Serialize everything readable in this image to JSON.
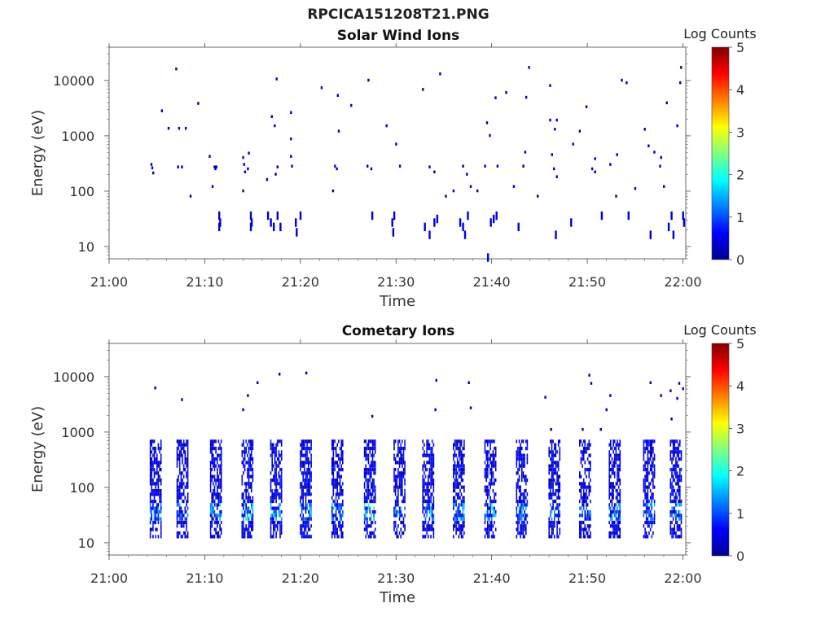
{
  "figure": {
    "title": "RPCICA151208T21.PNG"
  },
  "panels": [
    {
      "id": "solar",
      "title": "Solar Wind Ions",
      "xlabel": "Time",
      "ylabel": "Energy (eV)",
      "colorbar_label": "Log Counts"
    },
    {
      "id": "cometary",
      "title": "Cometary Ions",
      "xlabel": "Time",
      "ylabel": "Energy (eV)",
      "colorbar_label": "Log Counts"
    }
  ],
  "chart_data": [
    {
      "type": "heatmap",
      "title": "Solar Wind Ions",
      "xlabel": "Time",
      "ylabel": "Energy (eV)",
      "x_tick_labels": [
        "21:00",
        "21:10",
        "21:20",
        "21:30",
        "21:40",
        "21:50",
        "22:00"
      ],
      "x_ticks_min": [
        0,
        10,
        20,
        30,
        40,
        50,
        60
      ],
      "xlim_min": [
        0,
        60.3
      ],
      "y_scale": "log",
      "y_ticks": [
        10,
        100,
        1000,
        10000
      ],
      "y_tick_labels": [
        "10",
        "100",
        "1000",
        "10000"
      ],
      "ylim": [
        6,
        40000
      ],
      "colorbar": {
        "label": "Log Counts",
        "range": [
          0,
          5
        ],
        "ticks": [
          "0",
          "1",
          "2",
          "3",
          "4",
          "5"
        ],
        "colormap": "jet"
      },
      "grid": false,
      "points": [
        [
          7.0,
          16000,
          0.3
        ],
        [
          5.5,
          2800,
          0.3
        ],
        [
          6.2,
          1350,
          0.3
        ],
        [
          7.3,
          1350,
          0.3
        ],
        [
          8.0,
          1350,
          0.3
        ],
        [
          9.3,
          3800,
          0.3
        ],
        [
          4.4,
          300,
          0.3
        ],
        [
          4.5,
          260,
          0.3
        ],
        [
          4.6,
          210,
          0.3
        ],
        [
          7.2,
          270,
          0.3
        ],
        [
          7.6,
          270,
          0.3
        ],
        [
          8.5,
          80,
          0.3
        ],
        [
          10.5,
          420,
          0.3
        ],
        [
          11.0,
          270,
          0.3
        ],
        [
          11.1,
          250,
          0.3
        ],
        [
          11.2,
          270,
          0.3
        ],
        [
          10.8,
          120,
          0.3
        ],
        [
          11.5,
          40,
          0.4
        ],
        [
          11.6,
          30,
          0.4
        ],
        [
          11.5,
          25,
          0.4
        ],
        [
          14.0,
          400,
          0.3
        ],
        [
          14.1,
          300,
          0.3
        ],
        [
          14.2,
          220,
          0.3
        ],
        [
          14.5,
          250,
          0.3
        ],
        [
          14.6,
          480,
          0.3
        ],
        [
          14.0,
          100,
          0.3
        ],
        [
          14.8,
          40,
          0.4
        ],
        [
          14.9,
          30,
          0.4
        ],
        [
          14.8,
          25,
          0.4
        ],
        [
          17.0,
          2200,
          0.3
        ],
        [
          17.3,
          1500,
          0.3
        ],
        [
          17.5,
          10500,
          0.3
        ],
        [
          17.6,
          270,
          0.3
        ],
        [
          17.4,
          200,
          0.3
        ],
        [
          16.5,
          160,
          0.3
        ],
        [
          16.9,
          30,
          0.4
        ],
        [
          17.2,
          25,
          0.4
        ],
        [
          17.6,
          40,
          0.4
        ],
        [
          17.9,
          25,
          0.4
        ],
        [
          16.6,
          40,
          0.4
        ],
        [
          19.0,
          2600,
          0.3
        ],
        [
          19.0,
          870,
          0.3
        ],
        [
          19.0,
          420,
          0.3
        ],
        [
          19.1,
          280,
          0.3
        ],
        [
          19.5,
          30,
          0.4
        ],
        [
          19.6,
          20,
          0.4
        ],
        [
          20.0,
          40,
          0.4
        ],
        [
          22.2,
          7300,
          0.3
        ],
        [
          23.9,
          5300,
          0.3
        ],
        [
          24.0,
          1200,
          0.3
        ],
        [
          23.6,
          280,
          0.3
        ],
        [
          23.8,
          250,
          0.3
        ],
        [
          23.4,
          100,
          0.3
        ],
        [
          25.3,
          3500,
          0.3
        ],
        [
          27.1,
          10000,
          0.3
        ],
        [
          27.0,
          280,
          0.3
        ],
        [
          27.4,
          250,
          0.3
        ],
        [
          27.5,
          40,
          0.4
        ],
        [
          29.0,
          1500,
          0.3
        ],
        [
          30.0,
          700,
          0.3
        ],
        [
          30.4,
          280,
          0.3
        ],
        [
          29.6,
          30,
          0.4
        ],
        [
          29.8,
          40,
          0.4
        ],
        [
          29.7,
          20,
          0.4
        ],
        [
          32.8,
          6800,
          0.3
        ],
        [
          34.6,
          13000,
          0.3
        ],
        [
          33.5,
          270,
          0.3
        ],
        [
          34.0,
          220,
          0.3
        ],
        [
          35.2,
          80,
          0.3
        ],
        [
          33.0,
          25,
          0.5
        ],
        [
          33.5,
          18,
          0.6
        ],
        [
          34.0,
          30,
          0.5
        ],
        [
          34.3,
          35,
          0.5
        ],
        [
          36.7,
          30,
          0.6
        ],
        [
          37.0,
          25,
          0.6
        ],
        [
          37.5,
          40,
          0.5
        ],
        [
          37.2,
          18,
          0.6
        ],
        [
          36.0,
          100,
          0.3
        ],
        [
          37.0,
          280,
          0.3
        ],
        [
          37.4,
          200,
          0.3
        ],
        [
          37.8,
          120,
          0.3
        ],
        [
          38.5,
          100,
          0.3
        ],
        [
          39.5,
          1700,
          0.3
        ],
        [
          39.8,
          1000,
          0.3
        ],
        [
          39.3,
          280,
          0.3
        ],
        [
          40.6,
          280,
          0.3
        ],
        [
          39.9,
          30,
          0.5
        ],
        [
          40.2,
          35,
          0.5
        ],
        [
          40.5,
          40,
          0.5
        ],
        [
          39.6,
          7,
          0.5
        ],
        [
          40.4,
          4800,
          0.3
        ],
        [
          41.5,
          6000,
          0.3
        ],
        [
          42.3,
          120,
          0.3
        ],
        [
          43.5,
          500,
          0.3
        ],
        [
          43.3,
          280,
          0.3
        ],
        [
          43.9,
          17000,
          0.3
        ],
        [
          43.6,
          4900,
          0.3
        ],
        [
          42.8,
          25,
          0.4
        ],
        [
          44.8,
          80,
          0.3
        ],
        [
          46.1,
          1900,
          0.3
        ],
        [
          46.6,
          1300,
          0.3
        ],
        [
          46.8,
          1900,
          0.3
        ],
        [
          46.3,
          450,
          0.3
        ],
        [
          46.5,
          250,
          0.3
        ],
        [
          46.8,
          180,
          0.3
        ],
        [
          46.7,
          18,
          0.4
        ],
        [
          46.1,
          8000,
          0.3
        ],
        [
          48.3,
          30,
          0.4
        ],
        [
          48.5,
          700,
          0.3
        ],
        [
          49.2,
          1200,
          0.3
        ],
        [
          49.9,
          3300,
          0.3
        ],
        [
          50.8,
          380,
          0.3
        ],
        [
          50.5,
          250,
          0.3
        ],
        [
          50.8,
          220,
          0.3
        ],
        [
          51.5,
          40,
          0.4
        ],
        [
          52.4,
          300,
          0.3
        ],
        [
          53.1,
          450,
          0.3
        ],
        [
          53.0,
          80,
          0.3
        ],
        [
          53.6,
          10000,
          0.3
        ],
        [
          54.1,
          9000,
          0.3
        ],
        [
          54.3,
          40,
          0.4
        ],
        [
          55.0,
          110,
          0.3
        ],
        [
          56.0,
          1300,
          0.3
        ],
        [
          56.4,
          650,
          0.3
        ],
        [
          56.6,
          18,
          0.4
        ],
        [
          57.0,
          500,
          0.3
        ],
        [
          57.7,
          400,
          0.3
        ],
        [
          57.6,
          280,
          0.3
        ],
        [
          58.0,
          120,
          0.3
        ],
        [
          58.3,
          3900,
          0.3
        ],
        [
          58.5,
          25,
          0.4
        ],
        [
          58.8,
          40,
          0.4
        ],
        [
          59.0,
          18,
          0.4
        ],
        [
          59.4,
          1500,
          0.3
        ],
        [
          59.7,
          9000,
          0.3
        ],
        [
          59.8,
          17000,
          0.3
        ],
        [
          60.0,
          40,
          0.4
        ],
        [
          60.1,
          30,
          0.4
        ]
      ]
    },
    {
      "type": "heatmap",
      "title": "Cometary Ions",
      "xlabel": "Time",
      "ylabel": "Energy (eV)",
      "x_tick_labels": [
        "21:00",
        "21:10",
        "21:20",
        "21:30",
        "21:40",
        "21:50",
        "22:00"
      ],
      "x_ticks_min": [
        0,
        10,
        20,
        30,
        40,
        50,
        60
      ],
      "xlim_min": [
        0,
        60.3
      ],
      "y_scale": "log",
      "y_ticks": [
        10,
        100,
        1000,
        10000
      ],
      "y_tick_labels": [
        "10",
        "100",
        "1000",
        "10000"
      ],
      "ylim": [
        6,
        40000
      ],
      "colorbar": {
        "label": "Log Counts",
        "range": [
          0,
          5
        ],
        "ticks": [
          "0",
          "1",
          "2",
          "3",
          "4",
          "5"
        ],
        "colormap": "jet"
      },
      "grid": false,
      "bursts_min": [
        4.8,
        7.6,
        11.1,
        14.4,
        17.4,
        20.5,
        23.8,
        27.2,
        30.3,
        33.3,
        36.5,
        39.8,
        43.1,
        46.5,
        49.7,
        52.8,
        56.4,
        59.2
      ],
      "burst_energy_range": [
        12,
        700
      ],
      "burst_peak_log_counts": [
        1.6,
        1.5,
        1.6,
        2.1,
        2.0,
        1.7,
        1.6,
        2.0,
        1.8,
        1.8,
        1.9,
        2.1,
        1.7,
        1.6,
        1.5,
        1.5,
        1.6,
        2.0
      ],
      "points": [
        [
          4.8,
          6200,
          0.3
        ],
        [
          7.6,
          3800,
          0.3
        ],
        [
          14.0,
          2500,
          0.3
        ],
        [
          14.5,
          4500,
          0.3
        ],
        [
          15.5,
          7700,
          0.3
        ],
        [
          17.8,
          11000,
          0.3
        ],
        [
          20.6,
          11500,
          0.3
        ],
        [
          27.5,
          1900,
          0.3
        ],
        [
          34.2,
          8500,
          0.3
        ],
        [
          34.1,
          2500,
          0.3
        ],
        [
          37.6,
          7700,
          0.3
        ],
        [
          37.8,
          2700,
          0.3
        ],
        [
          45.6,
          4200,
          0.3
        ],
        [
          46.2,
          1100,
          0.3
        ],
        [
          49.5,
          1100,
          0.3
        ],
        [
          50.2,
          10500,
          0.3
        ],
        [
          50.4,
          7500,
          0.3
        ],
        [
          51.4,
          1100,
          0.3
        ],
        [
          52.0,
          2500,
          0.3
        ],
        [
          52.4,
          4500,
          0.3
        ],
        [
          56.6,
          7700,
          0.3
        ],
        [
          57.7,
          4500,
          0.3
        ],
        [
          58.7,
          5500,
          0.3
        ],
        [
          58.8,
          1700,
          0.3
        ],
        [
          59.6,
          7500,
          0.3
        ],
        [
          59.4,
          4000,
          0.3
        ],
        [
          60.0,
          6000,
          0.3
        ]
      ]
    }
  ]
}
